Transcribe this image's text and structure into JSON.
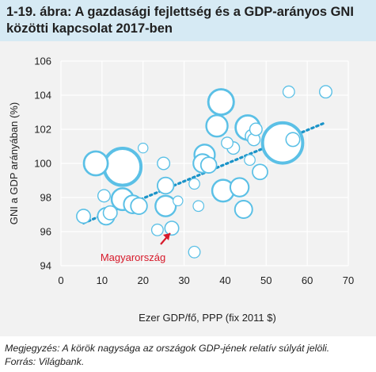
{
  "header": {
    "title_line1": "1-19. ábra: A gazdasági fejlettség és a GDP-arányos GNI",
    "title_line2": "közötti kapcsolat 2017-ben"
  },
  "footnote": {
    "line1": "Megjegyzés: A körök nagysága az országok GDP-jének relatív súlyát jelöli.",
    "line2": "Forrás: Világbank."
  },
  "colors": {
    "bubble": "#5bc0e6",
    "trend": "#1a93c8",
    "grid": "#ffffff",
    "background": "#f2f2f2",
    "annotation": "#d7192a"
  },
  "chart_data": {
    "type": "scatter",
    "xlabel": "Ezer GDP/fő, PPP (fix 2011 $)",
    "ylabel": "GNI a GDP arányában (%)",
    "xlim": [
      0,
      70
    ],
    "ylim": [
      94,
      106
    ],
    "xticks": [
      "0",
      "10",
      "20",
      "30",
      "40",
      "50",
      "60",
      "70"
    ],
    "yticks": [
      "94",
      "96",
      "98",
      "100",
      "102",
      "104",
      "106"
    ],
    "grid": true,
    "trendline": {
      "x": [
        5.5,
        64.5
      ],
      "y": [
        96.5,
        102.4
      ]
    },
    "annotation": {
      "text": "Magyarország",
      "point": [
        27,
        96.0
      ]
    },
    "points": [
      {
        "x": 5.5,
        "y": 96.9,
        "size": 1.0
      },
      {
        "x": 8.5,
        "y": 100.0,
        "size": 3.0
      },
      {
        "x": 10.5,
        "y": 98.1,
        "size": 0.8
      },
      {
        "x": 11.0,
        "y": 96.9,
        "size": 1.5
      },
      {
        "x": 12.0,
        "y": 97.1,
        "size": 1.0
      },
      {
        "x": 15.0,
        "y": 99.8,
        "size": 7.2
      },
      {
        "x": 15.0,
        "y": 97.9,
        "size": 2.5
      },
      {
        "x": 17.5,
        "y": 97.6,
        "size": 1.7
      },
      {
        "x": 19.0,
        "y": 97.5,
        "size": 1.4
      },
      {
        "x": 20.0,
        "y": 100.9,
        "size": 0.5
      },
      {
        "x": 23.5,
        "y": 96.1,
        "size": 0.7
      },
      {
        "x": 25.0,
        "y": 100.0,
        "size": 0.8
      },
      {
        "x": 25.5,
        "y": 97.5,
        "size": 2.2
      },
      {
        "x": 25.5,
        "y": 98.7,
        "size": 1.4
      },
      {
        "x": 27.0,
        "y": 96.2,
        "size": 1.0
      },
      {
        "x": 28.5,
        "y": 97.8,
        "size": 0.5
      },
      {
        "x": 32.5,
        "y": 94.8,
        "size": 0.7
      },
      {
        "x": 32.5,
        "y": 98.8,
        "size": 0.6
      },
      {
        "x": 33.5,
        "y": 97.5,
        "size": 0.6
      },
      {
        "x": 34.5,
        "y": 100.0,
        "size": 1.8
      },
      {
        "x": 35.0,
        "y": 100.5,
        "size": 2.2
      },
      {
        "x": 36.0,
        "y": 99.9,
        "size": 1.3
      },
      {
        "x": 38.0,
        "y": 102.2,
        "size": 2.4
      },
      {
        "x": 39.0,
        "y": 103.6,
        "size": 3.4
      },
      {
        "x": 39.5,
        "y": 98.4,
        "size": 2.5
      },
      {
        "x": 40.5,
        "y": 101.2,
        "size": 0.7
      },
      {
        "x": 42.0,
        "y": 100.9,
        "size": 0.8
      },
      {
        "x": 43.5,
        "y": 98.6,
        "size": 1.8
      },
      {
        "x": 44.5,
        "y": 97.3,
        "size": 1.6
      },
      {
        "x": 45.5,
        "y": 102.1,
        "size": 3.1
      },
      {
        "x": 46.0,
        "y": 100.2,
        "size": 0.6
      },
      {
        "x": 46.5,
        "y": 101.6,
        "size": 0.9
      },
      {
        "x": 47.0,
        "y": 101.4,
        "size": 0.8
      },
      {
        "x": 47.5,
        "y": 102.0,
        "size": 0.8
      },
      {
        "x": 48.5,
        "y": 99.5,
        "size": 1.2
      },
      {
        "x": 54.0,
        "y": 101.2,
        "size": 8.5
      },
      {
        "x": 55.5,
        "y": 104.2,
        "size": 0.7
      },
      {
        "x": 56.5,
        "y": 101.4,
        "size": 1.0
      },
      {
        "x": 64.5,
        "y": 104.2,
        "size": 0.8
      }
    ]
  }
}
